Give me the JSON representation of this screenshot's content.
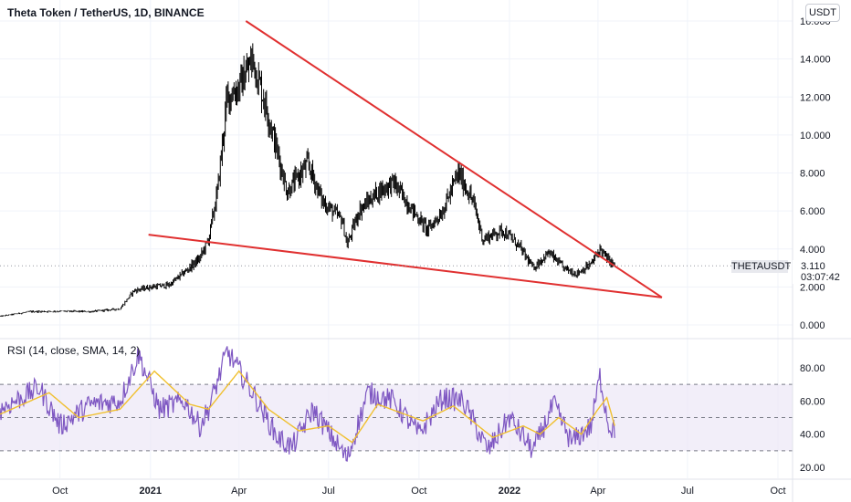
{
  "header": {
    "title": "Theta Token / TetherUS, 1D, BINANCE",
    "currency_button": "USDT"
  },
  "price_marker": {
    "symbol": "THETAUSDT",
    "price": "3.110",
    "countdown": "03:07:42"
  },
  "rsi_panel": {
    "title": "RSI (14, close, SMA, 14, 2)"
  },
  "colors": {
    "candles": "#000000",
    "trendlines": "#e03030",
    "rsi_line": "#7e57c2",
    "rsi_ma": "#f0c030",
    "rsi_band": "#ede7f6"
  },
  "chart_data": [
    {
      "type": "candlestick",
      "title": "Theta Token / TetherUS, 1D, BINANCE",
      "y_ticks": [
        "0.000",
        "2.000",
        "4.000",
        "6.000",
        "8.000",
        "10.000",
        "12.000",
        "14.000",
        "16.000"
      ],
      "ylim": [
        -0.2,
        16.4
      ],
      "x_ticks": [
        "Oct",
        "2021",
        "Apr",
        "Jul",
        "Oct",
        "2022",
        "Apr",
        "Jul",
        "Oct"
      ],
      "close_path": [
        {
          "date": "2020-08-01",
          "close": 0.45
        },
        {
          "date": "2020-09-01",
          "close": 0.7
        },
        {
          "date": "2020-10-01",
          "close": 0.72
        },
        {
          "date": "2020-11-01",
          "close": 0.7
        },
        {
          "date": "2020-12-01",
          "close": 0.85
        },
        {
          "date": "2020-12-15",
          "close": 1.8
        },
        {
          "date": "2021-01-01",
          "close": 2.0
        },
        {
          "date": "2021-01-20",
          "close": 2.1
        },
        {
          "date": "2021-02-05",
          "close": 2.8
        },
        {
          "date": "2021-02-20",
          "close": 3.5
        },
        {
          "date": "2021-03-01",
          "close": 4.5
        },
        {
          "date": "2021-03-10",
          "close": 7.0
        },
        {
          "date": "2021-03-20",
          "close": 12.0
        },
        {
          "date": "2021-04-01",
          "close": 12.5
        },
        {
          "date": "2021-04-15",
          "close": 14.0
        },
        {
          "date": "2021-05-01",
          "close": 11.0
        },
        {
          "date": "2021-05-20",
          "close": 7.0
        },
        {
          "date": "2021-06-10",
          "close": 8.5
        },
        {
          "date": "2021-06-25",
          "close": 6.5
        },
        {
          "date": "2021-07-15",
          "close": 5.5
        },
        {
          "date": "2021-07-20",
          "close": 4.2
        },
        {
          "date": "2021-08-01",
          "close": 6.0
        },
        {
          "date": "2021-08-20",
          "close": 7.0
        },
        {
          "date": "2021-09-05",
          "close": 7.5
        },
        {
          "date": "2021-09-25",
          "close": 6.0
        },
        {
          "date": "2021-10-10",
          "close": 5.0
        },
        {
          "date": "2021-10-25",
          "close": 6.0
        },
        {
          "date": "2021-11-10",
          "close": 8.0
        },
        {
          "date": "2021-11-25",
          "close": 6.5
        },
        {
          "date": "2021-12-05",
          "close": 4.5
        },
        {
          "date": "2021-12-25",
          "close": 5.0
        },
        {
          "date": "2022-01-10",
          "close": 4.2
        },
        {
          "date": "2022-01-25",
          "close": 3.0
        },
        {
          "date": "2022-02-10",
          "close": 3.8
        },
        {
          "date": "2022-02-25",
          "close": 3.0
        },
        {
          "date": "2022-03-10",
          "close": 2.7
        },
        {
          "date": "2022-03-25",
          "close": 3.2
        },
        {
          "date": "2022-04-03",
          "close": 4.0
        },
        {
          "date": "2022-04-10",
          "close": 3.5
        },
        {
          "date": "2022-04-18",
          "close": 3.11
        }
      ],
      "trendlines": [
        {
          "name": "upper",
          "from": {
            "date": "2021-04-08",
            "price": 16.0
          },
          "to": {
            "date": "2022-06-05",
            "price": 1.45
          }
        },
        {
          "name": "lower",
          "from": {
            "date": "2020-12-30",
            "price": 4.75
          },
          "to": {
            "date": "2022-06-05",
            "price": 1.45
          }
        }
      ]
    },
    {
      "type": "line",
      "title": "RSI (14, close, SMA, 14, 2)",
      "y_ticks": [
        "20.00",
        "40.00",
        "60.00",
        "80.00"
      ],
      "ylim": [
        17,
        95
      ],
      "bands": {
        "upper": 70,
        "middle": 50,
        "lower": 30
      },
      "series": [
        {
          "name": "RSI",
          "values_path": [
            {
              "date": "2020-08-01",
              "value": 55
            },
            {
              "date": "2020-09-10",
              "value": 68
            },
            {
              "date": "2020-10-01",
              "value": 45
            },
            {
              "date": "2020-11-01",
              "value": 58
            },
            {
              "date": "2020-12-01",
              "value": 60
            },
            {
              "date": "2020-12-20",
              "value": 88
            },
            {
              "date": "2021-01-10",
              "value": 55
            },
            {
              "date": "2021-02-05",
              "value": 60
            },
            {
              "date": "2021-02-20",
              "value": 45
            },
            {
              "date": "2021-03-01",
              "value": 55
            },
            {
              "date": "2021-03-20",
              "value": 90
            },
            {
              "date": "2021-04-15",
              "value": 65
            },
            {
              "date": "2021-05-10",
              "value": 38
            },
            {
              "date": "2021-05-25",
              "value": 32
            },
            {
              "date": "2021-06-15",
              "value": 55
            },
            {
              "date": "2021-07-20",
              "value": 25
            },
            {
              "date": "2021-08-10",
              "value": 65
            },
            {
              "date": "2021-09-05",
              "value": 60
            },
            {
              "date": "2021-10-01",
              "value": 40
            },
            {
              "date": "2021-10-25",
              "value": 62
            },
            {
              "date": "2021-11-15",
              "value": 60
            },
            {
              "date": "2021-12-10",
              "value": 30
            },
            {
              "date": "2022-01-01",
              "value": 50
            },
            {
              "date": "2022-01-25",
              "value": 30
            },
            {
              "date": "2022-02-15",
              "value": 58
            },
            {
              "date": "2022-03-05",
              "value": 35
            },
            {
              "date": "2022-03-25",
              "value": 45
            },
            {
              "date": "2022-04-03",
              "value": 75
            },
            {
              "date": "2022-04-12",
              "value": 45
            },
            {
              "date": "2022-04-18",
              "value": 42
            }
          ]
        },
        {
          "name": "RSI-based MA",
          "values_path": [
            {
              "date": "2020-08-01",
              "value": 52
            },
            {
              "date": "2020-09-20",
              "value": 65
            },
            {
              "date": "2020-10-20",
              "value": 50
            },
            {
              "date": "2020-12-01",
              "value": 55
            },
            {
              "date": "2021-01-05",
              "value": 78
            },
            {
              "date": "2021-02-10",
              "value": 58
            },
            {
              "date": "2021-03-01",
              "value": 55
            },
            {
              "date": "2021-04-01",
              "value": 78
            },
            {
              "date": "2021-05-01",
              "value": 55
            },
            {
              "date": "2021-06-01",
              "value": 42
            },
            {
              "date": "2021-07-01",
              "value": 45
            },
            {
              "date": "2021-07-25",
              "value": 35
            },
            {
              "date": "2021-08-20",
              "value": 58
            },
            {
              "date": "2021-10-05",
              "value": 48
            },
            {
              "date": "2021-11-05",
              "value": 57
            },
            {
              "date": "2021-12-15",
              "value": 38
            },
            {
              "date": "2022-01-15",
              "value": 45
            },
            {
              "date": "2022-02-01",
              "value": 40
            },
            {
              "date": "2022-02-20",
              "value": 50
            },
            {
              "date": "2022-03-15",
              "value": 40
            },
            {
              "date": "2022-04-01",
              "value": 55
            },
            {
              "date": "2022-04-10",
              "value": 62
            },
            {
              "date": "2022-04-18",
              "value": 45
            }
          ]
        }
      ]
    }
  ]
}
